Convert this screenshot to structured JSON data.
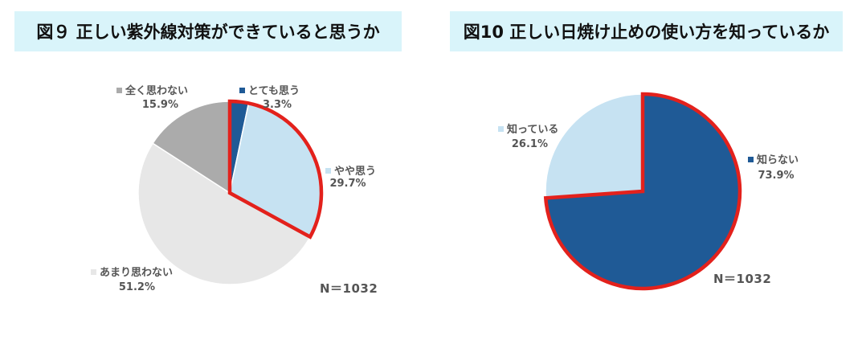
{
  "figures": [
    {
      "title": "図９ 正しい紫外線対策ができていると思うか",
      "n_label": "N＝1032"
    },
    {
      "title": "図10 正しい日焼け止めの使い方を知っているか",
      "n_label": "N＝1032"
    }
  ],
  "chart_data": [
    {
      "type": "pie",
      "title": "図９ 正しい紫外線対策ができていると思うか",
      "start_angle_deg": 0,
      "direction": "clockwise",
      "highlight_color": "#e3211c",
      "highlighted_slices": [
        "とても思う",
        "やや思う"
      ],
      "slices": [
        {
          "label": "とても思う",
          "value": 3.3,
          "value_label": "3.3%",
          "color": "#1f5a96"
        },
        {
          "label": "やや思う",
          "value": 29.7,
          "value_label": "29.7%",
          "color": "#c6e2f2"
        },
        {
          "label": "あまり思わない",
          "value": 51.2,
          "value_label": "51.2%",
          "color": "#e7e7e7"
        },
        {
          "label": "全く思わない",
          "value": 15.9,
          "value_label": "15.9%",
          "color": "#ababab"
        }
      ],
      "n": "N＝1032"
    },
    {
      "type": "pie",
      "title": "図10 正しい日焼け止めの使い方を知っているか",
      "start_angle_deg": 0,
      "direction": "clockwise",
      "highlight_color": "#e3211c",
      "highlighted_slices": [
        "知らない"
      ],
      "slices": [
        {
          "label": "知らない",
          "value": 73.9,
          "value_label": "73.9%",
          "color": "#1f5a96"
        },
        {
          "label": "知っている",
          "value": 26.1,
          "value_label": "26.1%",
          "color": "#c6e2f2"
        }
      ],
      "n": "N＝1032"
    }
  ]
}
